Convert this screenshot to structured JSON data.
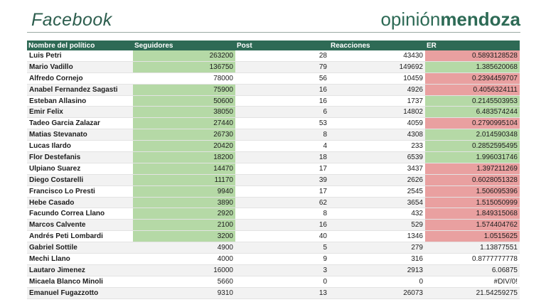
{
  "header": {
    "title": "Facebook",
    "brand_light": "opinión",
    "brand_bold": "mendoza"
  },
  "colors": {
    "accent": "#2e6a55",
    "highlight_green": "#b5d9a6",
    "highlight_red": "#e9a0a0"
  },
  "table": {
    "columns": [
      "Nombre del político",
      "Seguidores",
      "Post",
      "Reacciones",
      "ER"
    ],
    "rows": [
      {
        "name": "Luis Petri",
        "seguidores": "263200",
        "post": "28",
        "reacciones": "43430",
        "er": "0.5893128528",
        "seg_hl": "green",
        "er_hl": "red"
      },
      {
        "name": "Mario Vadillo",
        "seguidores": "136750",
        "post": "79",
        "reacciones": "149692",
        "er": "1.385620068",
        "seg_hl": "green",
        "er_hl": "green"
      },
      {
        "name": "Alfredo Cornejo",
        "seguidores": "78000",
        "post": "56",
        "reacciones": "10459",
        "er": "0.2394459707",
        "seg_hl": "",
        "er_hl": "red"
      },
      {
        "name": "Anabel Fernandez Sagasti",
        "seguidores": "75900",
        "post": "16",
        "reacciones": "4926",
        "er": "0.4056324111",
        "seg_hl": "green",
        "er_hl": "red"
      },
      {
        "name": "Esteban Allasino",
        "seguidores": "50600",
        "post": "16",
        "reacciones": "1737",
        "er": "0.2145503953",
        "seg_hl": "green",
        "er_hl": "green"
      },
      {
        "name": "Emir Felix",
        "seguidores": "38050",
        "post": "6",
        "reacciones": "14802",
        "er": "6.483574244",
        "seg_hl": "green",
        "er_hl": "green"
      },
      {
        "name": "Tadeo Garcia Zalazar",
        "seguidores": "27440",
        "post": "53",
        "reacciones": "4059",
        "er": "0.2790995104",
        "seg_hl": "green",
        "er_hl": "red"
      },
      {
        "name": "Matias Stevanato",
        "seguidores": "26730",
        "post": "8",
        "reacciones": "4308",
        "er": "2.014590348",
        "seg_hl": "green",
        "er_hl": "green"
      },
      {
        "name": "Lucas Ilardo",
        "seguidores": "20420",
        "post": "4",
        "reacciones": "233",
        "er": "0.2852595495",
        "seg_hl": "green",
        "er_hl": "green"
      },
      {
        "name": "Flor Destefanis",
        "seguidores": "18200",
        "post": "18",
        "reacciones": "6539",
        "er": "1.996031746",
        "seg_hl": "green",
        "er_hl": "green"
      },
      {
        "name": "Ulpiano Suarez",
        "seguidores": "14470",
        "post": "17",
        "reacciones": "3437",
        "er": "1.397211269",
        "seg_hl": "green",
        "er_hl": "red"
      },
      {
        "name": "Diego Costarelli",
        "seguidores": "11170",
        "post": "39",
        "reacciones": "2626",
        "er": "0.6028051328",
        "seg_hl": "green",
        "er_hl": "red"
      },
      {
        "name": "Francisco Lo Presti",
        "seguidores": "9940",
        "post": "17",
        "reacciones": "2545",
        "er": "1.506095396",
        "seg_hl": "green",
        "er_hl": "red"
      },
      {
        "name": "Hebe Casado",
        "seguidores": "3890",
        "post": "62",
        "reacciones": "3654",
        "er": "1.515050999",
        "seg_hl": "green",
        "er_hl": "red"
      },
      {
        "name": "Facundo Correa Llano",
        "seguidores": "2920",
        "post": "8",
        "reacciones": "432",
        "er": "1.849315068",
        "seg_hl": "green",
        "er_hl": "red"
      },
      {
        "name": "Marcos Calvente",
        "seguidores": "2100",
        "post": "16",
        "reacciones": "529",
        "er": "1.574404762",
        "seg_hl": "green",
        "er_hl": "red"
      },
      {
        "name": "Andrés Peti Lombardi",
        "seguidores": "3200",
        "post": "40",
        "reacciones": "1346",
        "er": "1.0515625",
        "seg_hl": "green",
        "er_hl": "red"
      },
      {
        "name": "Gabriel Sottile",
        "seguidores": "4900",
        "post": "5",
        "reacciones": "279",
        "er": "1.13877551",
        "seg_hl": "",
        "er_hl": ""
      },
      {
        "name": "Mechi Llano",
        "seguidores": "4000",
        "post": "9",
        "reacciones": "316",
        "er": "0.8777777778",
        "seg_hl": "",
        "er_hl": ""
      },
      {
        "name": "Lautaro Jimenez",
        "seguidores": "16000",
        "post": "3",
        "reacciones": "2913",
        "er": "6.06875",
        "seg_hl": "",
        "er_hl": ""
      },
      {
        "name": "Micaela Blanco Minoli",
        "seguidores": "5660",
        "post": "0",
        "reacciones": "0",
        "er": "#DIV/0!",
        "seg_hl": "",
        "er_hl": ""
      },
      {
        "name": "Emanuel Fugazzotto",
        "seguidores": "9310",
        "post": "13",
        "reacciones": "26073",
        "er": "21.54259275",
        "seg_hl": "",
        "er_hl": ""
      }
    ]
  }
}
